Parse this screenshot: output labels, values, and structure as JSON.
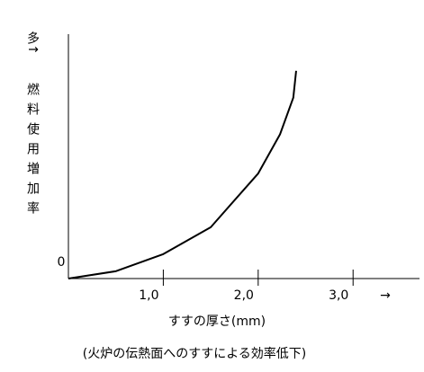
{
  "chart_data": {
    "type": "line",
    "y_label_top": "多↑",
    "y_label": "燃料使用増加率",
    "x_label": "すすの厚さ(mm)",
    "x_arrow": "→",
    "caption": "(火炉の伝熱面へのすすによる効率低下)",
    "x": [
      0,
      0.5,
      1.0,
      1.5,
      2.0,
      2.23,
      2.37,
      2.4
    ],
    "series": [
      {
        "color": "#000000",
        "values": [
          0,
          0.3,
          1.0,
          2.1,
          4.3,
          5.9,
          7.4,
          8.5
        ]
      }
    ],
    "xlim": [
      0,
      3.7
    ],
    "ylim": [
      0,
      10
    ],
    "xticks": [
      {
        "value": 1,
        "label": "1,0"
      },
      {
        "value": 2,
        "label": "2,0"
      },
      {
        "value": 3,
        "label": "3,0"
      }
    ],
    "yticks": [
      0
    ]
  }
}
